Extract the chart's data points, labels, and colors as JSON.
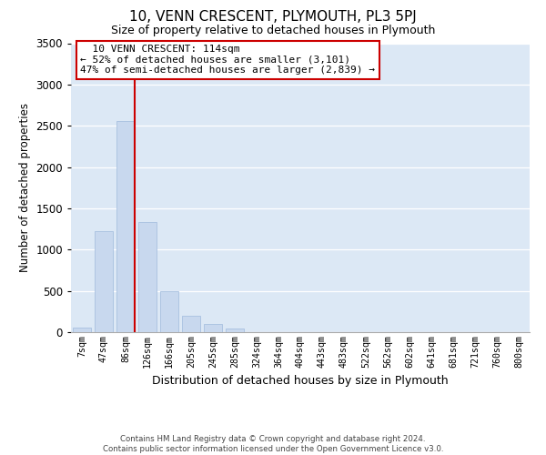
{
  "title": "10, VENN CRESCENT, PLYMOUTH, PL3 5PJ",
  "subtitle": "Size of property relative to detached houses in Plymouth",
  "xlabel": "Distribution of detached houses by size in Plymouth",
  "ylabel": "Number of detached properties",
  "bar_color": "#c8d8ee",
  "bar_edge_color": "#a8c0e0",
  "categories": [
    "7sqm",
    "47sqm",
    "86sqm",
    "126sqm",
    "166sqm",
    "205sqm",
    "245sqm",
    "285sqm",
    "324sqm",
    "364sqm",
    "404sqm",
    "443sqm",
    "483sqm",
    "522sqm",
    "562sqm",
    "602sqm",
    "641sqm",
    "681sqm",
    "721sqm",
    "760sqm",
    "800sqm"
  ],
  "values": [
    50,
    1220,
    2560,
    1330,
    500,
    200,
    100,
    45,
    5,
    0,
    0,
    0,
    0,
    0,
    0,
    0,
    0,
    0,
    0,
    0,
    0
  ],
  "ylim": [
    0,
    3500
  ],
  "yticks": [
    0,
    500,
    1000,
    1500,
    2000,
    2500,
    3000,
    3500
  ],
  "vline_color": "#cc0000",
  "vline_bar_index": 2,
  "annotation_title": "10 VENN CRESCENT: 114sqm",
  "annotation_line1": "← 52% of detached houses are smaller (3,101)",
  "annotation_line2": "47% of semi-detached houses are larger (2,839) →",
  "annotation_box_color": "#ffffff",
  "annotation_box_edge": "#cc0000",
  "footer_line1": "Contains HM Land Registry data © Crown copyright and database right 2024.",
  "footer_line2": "Contains public sector information licensed under the Open Government Licence v3.0.",
  "background_color": "#dce8f5",
  "grid_color": "#ffffff"
}
